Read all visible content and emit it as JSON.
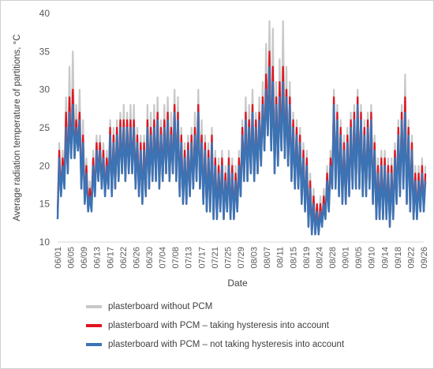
{
  "chart_data": {
    "type": "line",
    "xlabel": "Date",
    "ylabel": "Average radiation temperature of partitions, °C",
    "ylim": [
      10,
      40
    ],
    "yticks": [
      "10",
      "15",
      "20",
      "25",
      "30",
      "35",
      "40"
    ],
    "categories": [
      "06/01",
      "06/05",
      "06/09",
      "06/13",
      "06/17",
      "06/22",
      "06/26",
      "06/30",
      "07/04",
      "07/08",
      "07/13",
      "07/17",
      "07/21",
      "07/25",
      "07/29",
      "08/03",
      "08/07",
      "08/11",
      "08/15",
      "08/19",
      "08/24",
      "08/28",
      "09/01",
      "09/05",
      "09/10",
      "09/14",
      "09/18",
      "09/22",
      "09/26"
    ],
    "series": [
      {
        "name": "plasterboard without PCM",
        "color": "#c8c8c8",
        "daily_high": [
          23,
          22,
          29,
          33,
          35,
          28,
          30,
          26,
          21,
          18,
          22,
          24,
          24,
          23,
          22,
          26,
          25,
          26,
          27,
          28,
          27,
          28,
          28,
          25,
          24,
          24,
          28,
          27,
          28,
          29,
          26,
          28,
          29,
          27,
          30,
          29,
          25,
          23,
          24,
          25,
          27,
          30,
          26,
          24,
          23,
          25,
          22,
          21,
          22,
          20,
          22,
          21,
          20,
          22,
          26,
          29,
          28,
          30,
          27,
          29,
          31,
          36,
          39,
          38,
          31,
          34,
          39,
          33,
          31,
          27,
          26,
          25,
          23,
          22,
          19,
          17,
          15,
          16,
          17,
          20,
          22,
          30,
          28,
          26,
          24,
          25,
          27,
          28,
          30,
          28,
          26,
          27,
          28,
          24,
          21,
          22,
          22,
          21,
          21,
          23,
          26,
          28,
          32,
          26,
          24,
          20,
          20,
          21,
          20
        ],
        "daily_low": [
          13,
          16,
          17,
          19,
          21,
          21,
          22,
          17,
          15,
          14,
          15,
          16,
          18,
          17,
          16,
          17,
          16,
          17,
          18,
          19,
          18,
          19,
          19,
          17,
          16,
          15,
          16,
          17,
          18,
          18,
          17,
          18,
          19,
          18,
          19,
          18,
          16,
          15,
          15,
          16,
          17,
          18,
          17,
          15,
          14,
          14,
          13,
          13,
          14,
          13,
          14,
          13,
          13,
          14,
          16,
          18,
          18,
          19,
          18,
          19,
          20,
          22,
          24,
          22,
          19,
          20,
          22,
          21,
          20,
          18,
          17,
          17,
          15,
          14,
          12,
          11,
          11,
          11,
          12,
          13,
          14,
          17,
          17,
          16,
          15,
          15,
          16,
          17,
          17,
          17,
          16,
          16,
          17,
          15,
          13,
          13,
          13,
          13,
          12,
          13,
          15,
          16,
          17,
          15,
          14,
          13,
          13,
          14,
          14
        ]
      },
      {
        "name": "plasterboard with PCM – taking hysteresis into account",
        "color": "#e0141e",
        "daily_high": [
          22,
          21,
          27,
          29,
          30,
          26,
          27,
          24,
          20,
          17,
          21,
          23,
          23,
          22,
          21,
          25,
          24,
          25,
          26,
          26,
          26,
          26,
          26,
          24,
          23,
          23,
          26,
          25,
          26,
          27,
          25,
          26,
          27,
          25,
          28,
          27,
          24,
          22,
          23,
          24,
          25,
          28,
          24,
          23,
          22,
          24,
          21,
          20,
          21,
          19,
          21,
          20,
          19,
          21,
          25,
          27,
          26,
          28,
          26,
          27,
          29,
          32,
          35,
          33,
          29,
          31,
          33,
          30,
          29,
          26,
          25,
          24,
          22,
          21,
          18,
          16,
          15,
          15,
          16,
          19,
          21,
          29,
          27,
          25,
          23,
          24,
          26,
          27,
          29,
          27,
          25,
          26,
          27,
          23,
          20,
          21,
          21,
          20,
          20,
          22,
          25,
          27,
          29,
          25,
          23,
          19,
          19,
          20,
          19
        ],
        "daily_low": [
          14,
          16,
          18,
          19,
          21,
          21,
          22,
          17,
          15,
          14,
          15,
          16,
          18,
          17,
          16,
          17,
          16,
          17,
          18,
          19,
          18,
          19,
          19,
          17,
          16,
          15,
          16,
          17,
          18,
          18,
          17,
          18,
          19,
          18,
          19,
          18,
          16,
          15,
          15,
          16,
          17,
          18,
          17,
          15,
          14,
          14,
          13,
          13,
          14,
          13,
          14,
          13,
          13,
          14,
          16,
          18,
          18,
          19,
          18,
          19,
          20,
          22,
          24,
          22,
          19,
          20,
          22,
          21,
          20,
          18,
          17,
          17,
          15,
          14,
          12,
          11,
          11,
          11,
          12,
          13,
          14,
          17,
          17,
          16,
          15,
          15,
          16,
          17,
          17,
          17,
          16,
          16,
          17,
          15,
          13,
          13,
          13,
          13,
          12,
          13,
          15,
          16,
          17,
          15,
          14,
          13,
          13,
          14,
          14
        ]
      },
      {
        "name": "plasterboard with PCM – not taking hysteresis into account",
        "color": "#3c73b4",
        "daily_high": [
          21,
          20,
          25,
          27,
          28,
          25,
          26,
          23,
          19,
          16,
          20,
          22,
          22,
          21,
          20,
          24,
          23,
          24,
          25,
          25,
          25,
          25,
          25,
          23,
          22,
          22,
          25,
          24,
          25,
          26,
          24,
          25,
          26,
          24,
          27,
          26,
          23,
          21,
          22,
          23,
          24,
          27,
          23,
          22,
          21,
          23,
          20,
          19,
          20,
          18,
          20,
          19,
          18,
          20,
          24,
          26,
          25,
          27,
          25,
          26,
          28,
          30,
          33,
          31,
          28,
          29,
          31,
          29,
          28,
          25,
          24,
          23,
          21,
          20,
          17,
          15,
          14,
          14,
          15,
          18,
          20,
          28,
          26,
          24,
          22,
          23,
          25,
          26,
          28,
          26,
          24,
          25,
          26,
          22,
          19,
          20,
          20,
          19,
          19,
          21,
          24,
          26,
          27,
          24,
          22,
          18,
          18,
          19,
          18
        ],
        "daily_low": [
          13,
          16,
          17,
          19,
          21,
          21,
          22,
          17,
          15,
          14,
          14,
          16,
          18,
          17,
          16,
          17,
          16,
          17,
          18,
          19,
          18,
          19,
          19,
          17,
          16,
          15,
          16,
          17,
          18,
          18,
          17,
          18,
          19,
          18,
          19,
          18,
          16,
          15,
          15,
          16,
          17,
          18,
          17,
          15,
          14,
          14,
          13,
          13,
          14,
          13,
          14,
          13,
          13,
          14,
          16,
          18,
          18,
          19,
          18,
          19,
          20,
          22,
          24,
          22,
          19,
          20,
          22,
          21,
          20,
          18,
          17,
          17,
          15,
          14,
          12,
          11,
          11,
          11,
          12,
          13,
          14,
          17,
          17,
          16,
          15,
          15,
          16,
          17,
          17,
          17,
          16,
          16,
          17,
          15,
          13,
          13,
          13,
          13,
          12,
          13,
          15,
          16,
          17,
          15,
          14,
          13,
          13,
          14,
          14
        ]
      }
    ],
    "grid": false,
    "legend_position": "bottom"
  }
}
